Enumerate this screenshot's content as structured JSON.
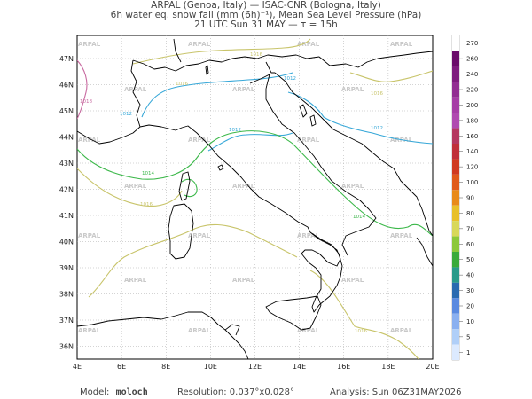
{
  "header": {
    "line1": "ARPAL (Genoa, Italy)  —  ISAC-CNR (Bologna, Italy)",
    "line2": "6h water eq. snow fall (mm (6h)⁻¹), Mean Sea Level Pressure (hPa)",
    "line3": "21 UTC Sun 31 MAY  —  τ = 15h"
  },
  "map": {
    "lat_labels": [
      "47N",
      "46N",
      "45N",
      "44N",
      "43N",
      "42N",
      "41N",
      "40N",
      "39N",
      "38N",
      "37N",
      "36N"
    ],
    "lon_labels": [
      "4E",
      "6E",
      "8E",
      "10E",
      "12E",
      "14E",
      "16E",
      "18E",
      "20E"
    ],
    "watermark": "ARPAL",
    "isobar_labels": [
      "1016",
      "1016",
      "1016",
      "1012",
      "1018",
      "1012",
      "1012",
      "1012",
      "1014",
      "1016",
      "1014",
      "1016"
    ]
  },
  "colorbar": {
    "levels": [
      "270",
      "260",
      "240",
      "220",
      "200",
      "180",
      "160",
      "140",
      "120",
      "100",
      "90",
      "80",
      "70",
      "60",
      "50",
      "40",
      "30",
      "20",
      "10",
      "5",
      "1"
    ],
    "colors": [
      "#ffffff",
      "#6a0c6a",
      "#7e1c7e",
      "#922e92",
      "#a63ea6",
      "#b04ab0",
      "#b43860",
      "#c0303a",
      "#d03a20",
      "#e05a1a",
      "#e88a1a",
      "#e8c02a",
      "#d8d85a",
      "#8cc83a",
      "#3aaa3a",
      "#2a9a8a",
      "#2a6ab0",
      "#5a8ae0",
      "#8ab0f0",
      "#b0cff8",
      "#dceaff"
    ]
  },
  "footer": {
    "model_label": "Model:",
    "model_value": "moloch",
    "resolution": "Resolution: 0.037°x0.028°",
    "analysis": "Analysis: Sun 06Z31MAY2026"
  },
  "colors": {
    "coast": "#000000",
    "grid": "#aaaaaa",
    "isobar_1012": "#38a8d8",
    "isobar_1014": "#3cb84a",
    "isobar_1016": "#c8c46a",
    "isobar_1018": "#c86aa0"
  }
}
